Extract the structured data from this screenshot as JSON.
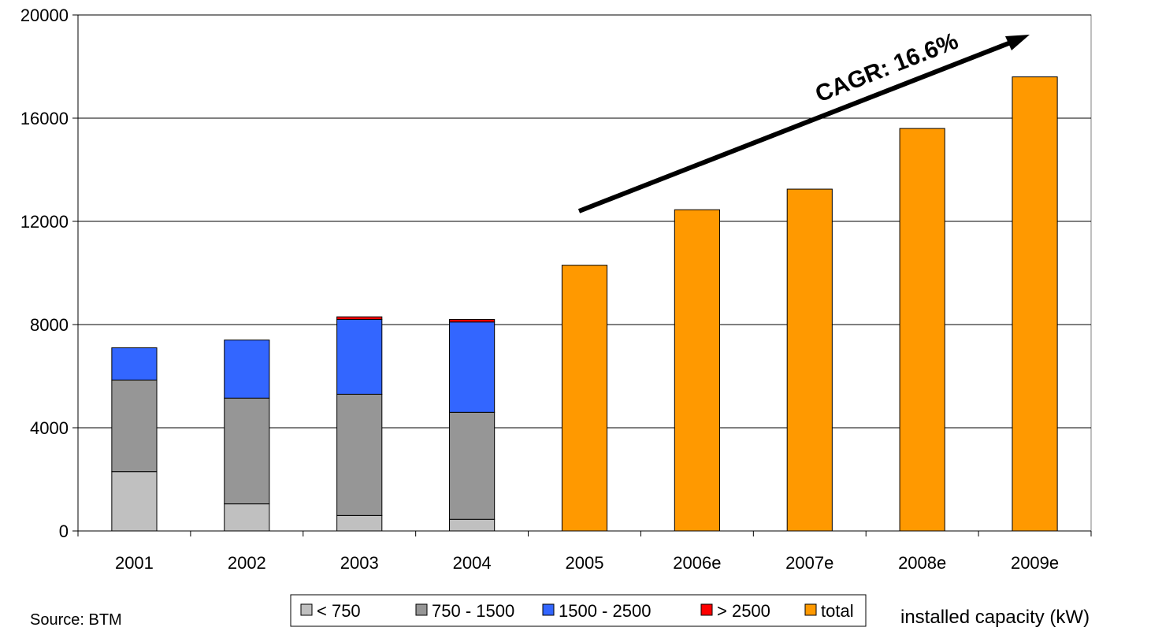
{
  "chart_data": {
    "type": "bar",
    "stacked": true,
    "categories": [
      "2001",
      "2002",
      "2003",
      "2004",
      "2005",
      "2006e",
      "2007e",
      "2008e",
      "2009e"
    ],
    "series": [
      {
        "name": "< 750",
        "color": "#c0c0c0",
        "values": [
          2300,
          1050,
          600,
          450,
          0,
          0,
          0,
          0,
          0
        ]
      },
      {
        "name": "750 - 1500",
        "color": "#969696",
        "values": [
          3550,
          4100,
          4700,
          4150,
          0,
          0,
          0,
          0,
          0
        ]
      },
      {
        "name": "1500 - 2500",
        "color": "#3366ff",
        "values": [
          1250,
          2250,
          2900,
          3500,
          0,
          0,
          0,
          0,
          0
        ]
      },
      {
        "name": "> 2500",
        "color": "#ff0000",
        "values": [
          0,
          0,
          100,
          100,
          0,
          0,
          0,
          0,
          0
        ]
      },
      {
        "name": "total",
        "color": "#ff9900",
        "values": [
          0,
          0,
          0,
          0,
          10300,
          12450,
          13250,
          15600,
          17600
        ]
      }
    ],
    "ylim": [
      0,
      20000
    ],
    "yticks": [
      0,
      4000,
      8000,
      12000,
      16000,
      20000
    ],
    "grid": true,
    "legend_position": "bottom",
    "annotation": "CAGR: 16.6%",
    "source_note": "Source: BTM",
    "unit_note": "installed capacity (kW)"
  }
}
